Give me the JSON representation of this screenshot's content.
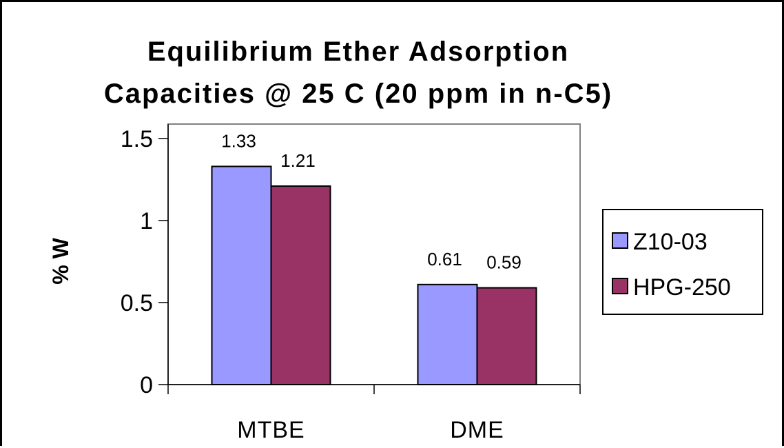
{
  "chart_data": {
    "type": "bar",
    "title_lines": [
      "Equilibrium Ether Adsorption",
      "Capacities @ 25 C (20 ppm in n-C5)"
    ],
    "xlabel": "",
    "ylabel": "% W",
    "categories": [
      "MTBE",
      "DME"
    ],
    "series": [
      {
        "name": "Z10-03",
        "values": [
          1.33,
          0.61
        ],
        "value_labels": [
          "1.33",
          "0.61"
        ],
        "color": "#9999ff"
      },
      {
        "name": "HPG-250",
        "values": [
          1.21,
          0.59
        ],
        "value_labels": [
          "1.21",
          "0.59"
        ],
        "color": "#993366"
      }
    ],
    "ylim": [
      0,
      1.5
    ],
    "yticks": [
      0,
      0.5,
      1,
      1.5
    ],
    "ytick_labels": [
      "0",
      "0.5",
      "1",
      "1.5"
    ],
    "grid": false,
    "legend_position": "right",
    "colors": {
      "plot_border": "#808080",
      "bar_edge": "#000000"
    }
  }
}
